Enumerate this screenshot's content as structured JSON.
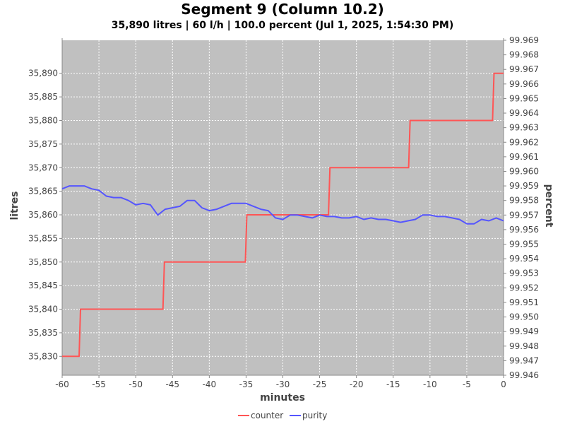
{
  "chart_data": {
    "type": "line",
    "title": "Segment  9 (Column 10.2)",
    "subtitle": "35,890 litres | 60 l/h | 100.0 percent (Jul 1, 2025, 1:54:30 PM)",
    "xlabel": "minutes",
    "ylabel_left": "litres",
    "ylabel_right": "percent",
    "xlim": [
      -60,
      0
    ],
    "ylim_left": [
      35826,
      35897
    ],
    "ylim_right": [
      99.946,
      99.969
    ],
    "x_ticks": [
      -60,
      -55,
      -50,
      -45,
      -40,
      -35,
      -30,
      -25,
      -20,
      -15,
      -10,
      -5,
      0
    ],
    "y_ticks_left": [
      "35,830",
      "35,835",
      "35,840",
      "35,845",
      "35,850",
      "35,855",
      "35,860",
      "35,865",
      "35,870",
      "35,875",
      "35,880",
      "35,885",
      "35,890"
    ],
    "y_ticks_left_values": [
      35830,
      35835,
      35840,
      35845,
      35850,
      35855,
      35860,
      35865,
      35870,
      35875,
      35880,
      35885,
      35890
    ],
    "y_ticks_right": [
      "99.946",
      "99.947",
      "99.948",
      "99.949",
      "99.950",
      "99.951",
      "99.952",
      "99.953",
      "99.954",
      "99.955",
      "99.956",
      "99.957",
      "99.958",
      "99.959",
      "99.960",
      "99.961",
      "99.962",
      "99.963",
      "99.964",
      "99.965",
      "99.966",
      "99.967",
      "99.968",
      "99.969"
    ],
    "grid": true,
    "legend_position": "bottom-center",
    "series": [
      {
        "name": "counter",
        "axis": "left",
        "color": "#ff5555",
        "x": [
          -60,
          -57.7,
          -57.5,
          -46.3,
          -46.1,
          -35.1,
          -34.9,
          -23.8,
          -23.6,
          -12.9,
          -12.7,
          -1.5,
          -1.3,
          0
        ],
        "y": [
          35830,
          35830,
          35840,
          35840,
          35850,
          35850,
          35860,
          35860,
          35870,
          35870,
          35880,
          35880,
          35890,
          35890
        ]
      },
      {
        "name": "purity",
        "axis": "right",
        "color": "#5555ff",
        "x": [
          -60,
          -59,
          -58,
          -57,
          -56,
          -55,
          -54,
          -53,
          -52,
          -51,
          -50,
          -49,
          -48,
          -47,
          -46,
          -45,
          -44,
          -43,
          -42,
          -41,
          -40,
          -39,
          -38,
          -37,
          -36,
          -35,
          -34,
          -33,
          -32,
          -31,
          -30,
          -29,
          -28,
          -27,
          -26,
          -25,
          -24,
          -23,
          -22,
          -21,
          -20,
          -19,
          -18,
          -17,
          -16,
          -15,
          -14,
          -13,
          -12,
          -11,
          -10,
          -9,
          -8,
          -7,
          -6,
          -5,
          -4,
          -3,
          -2,
          -1,
          0
        ],
        "y": [
          99.9588,
          99.959,
          99.959,
          99.959,
          99.9588,
          99.9587,
          99.9583,
          99.9582,
          99.9582,
          99.958,
          99.9577,
          99.9578,
          99.9577,
          99.957,
          99.9574,
          99.9575,
          99.9576,
          99.958,
          99.958,
          99.9575,
          99.9573,
          99.9574,
          99.9576,
          99.9578,
          99.9578,
          99.9578,
          99.9576,
          99.9574,
          99.9573,
          99.9568,
          99.9567,
          99.957,
          99.957,
          99.9569,
          99.9568,
          99.957,
          99.9569,
          99.9569,
          99.9568,
          99.9568,
          99.9569,
          99.9567,
          99.9568,
          99.9567,
          99.9567,
          99.9566,
          99.9565,
          99.9566,
          99.9567,
          99.957,
          99.957,
          99.9569,
          99.9569,
          99.9568,
          99.9567,
          99.9564,
          99.9564,
          99.9567,
          99.9566,
          99.9568,
          99.9566
        ]
      }
    ]
  }
}
